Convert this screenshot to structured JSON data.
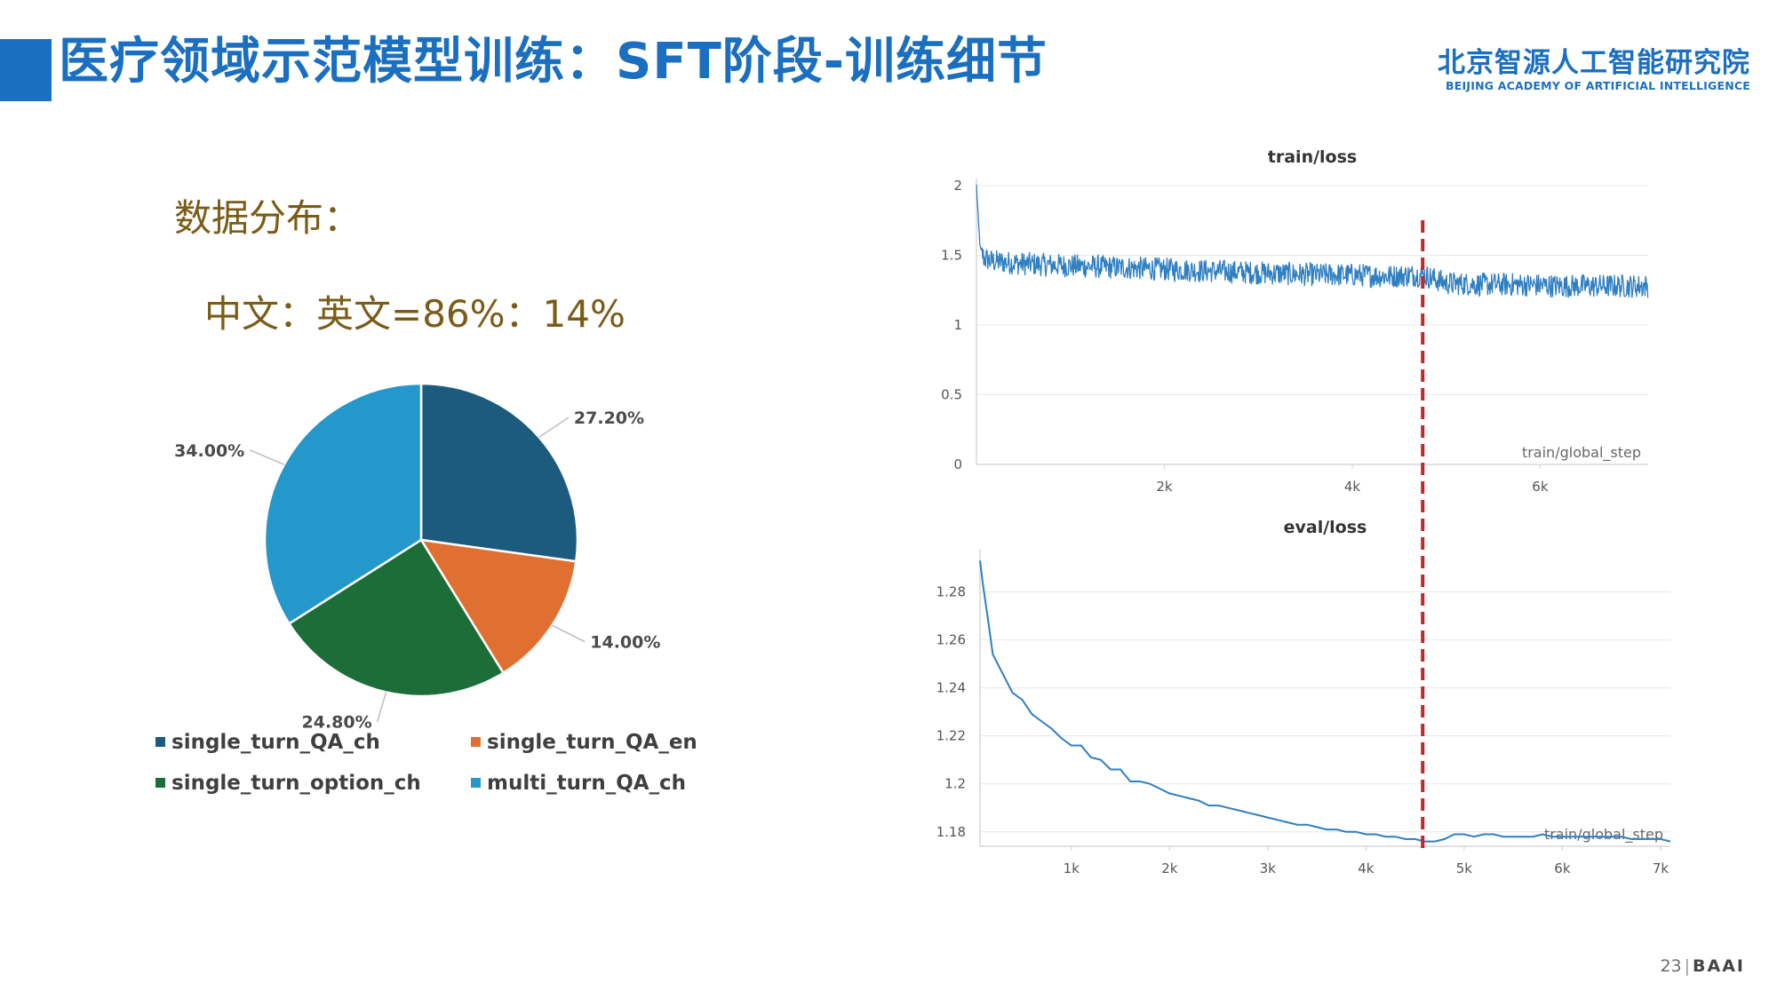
{
  "slide": {
    "title": "医疗领域示范模型训练：SFT阶段-训练细节",
    "logo_cn": "北京智源人工智能研究院",
    "logo_en": "BEIJING ACADEMY OF ARTIFICIAL INTELLIGENCE",
    "section_label": "数据分布：",
    "ratio_text": "中文：英文=86%：14%",
    "page_number": "23",
    "brand": "BAAI",
    "accent_color": "#1b6fc0",
    "text_color": "#7a5c18"
  },
  "chart_data": [
    {
      "type": "pie",
      "title": "",
      "categories": [
        "single_turn_QA_ch",
        "single_turn_QA_en",
        "single_turn_option_ch",
        "multi_turn_QA_ch"
      ],
      "values": [
        27.2,
        14.0,
        24.8,
        34.0
      ],
      "labels": [
        "27.20%",
        "14.00%",
        "24.80%",
        "34.00%"
      ],
      "colors": [
        "#1c5b7e",
        "#e07032",
        "#1d6d38",
        "#2497cb"
      ],
      "legend_position": "bottom"
    },
    {
      "type": "line",
      "title": "train/loss",
      "xlabel": "train/global_step",
      "x_ticks": [
        "2k",
        "4k",
        "6k"
      ],
      "x_tick_values": [
        2000,
        4000,
        6000
      ],
      "y_ticks": [
        "0",
        "0.5",
        "1",
        "1.5",
        "2"
      ],
      "y_tick_values": [
        0,
        0.5,
        1,
        1.5,
        2
      ],
      "xlim": [
        0,
        7150
      ],
      "ylim": [
        0,
        2
      ],
      "series": [
        {
          "x": [
            0,
            20,
            40,
            80,
            150,
            300,
            500,
            800,
            1200,
            1600,
            2000,
            2400,
            2800,
            3200,
            3600,
            4000,
            4400,
            4750,
            5000,
            5400,
            5800,
            6200,
            6600,
            7000,
            7150
          ],
          "y": [
            2.0,
            1.75,
            1.55,
            1.48,
            1.46,
            1.45,
            1.44,
            1.43,
            1.42,
            1.41,
            1.4,
            1.39,
            1.38,
            1.37,
            1.36,
            1.36,
            1.35,
            1.36,
            1.3,
            1.29,
            1.29,
            1.28,
            1.28,
            1.28,
            1.28
          ],
          "color": "#2f7fc1"
        }
      ],
      "grid": true,
      "marker_line": {
        "x": 4750,
        "color": "#c0282d",
        "style": "dashed"
      }
    },
    {
      "type": "line",
      "title": "eval/loss",
      "xlabel": "train/global_step",
      "x_ticks": [
        "1k",
        "2k",
        "3k",
        "4k",
        "5k",
        "6k",
        "7k"
      ],
      "x_tick_values": [
        1000,
        2000,
        3000,
        4000,
        5000,
        6000,
        7000
      ],
      "y_ticks": [
        "1.18",
        "1.2",
        "1.22",
        "1.24",
        "1.26",
        "1.28"
      ],
      "y_tick_values": [
        1.18,
        1.2,
        1.22,
        1.24,
        1.26,
        1.28
      ],
      "xlim": [
        70,
        7100
      ],
      "ylim": [
        1.174,
        1.295
      ],
      "series": [
        {
          "x": [
            70,
            100,
            150,
            200,
            300,
            400,
            500,
            600,
            700,
            800,
            900,
            1000,
            1100,
            1200,
            1300,
            1400,
            1500,
            1600,
            1700,
            1800,
            1900,
            2000,
            2100,
            2200,
            2300,
            2400,
            2500,
            2600,
            2700,
            2800,
            2900,
            3000,
            3100,
            3200,
            3300,
            3400,
            3500,
            3600,
            3700,
            3800,
            3900,
            4000,
            4100,
            4200,
            4300,
            4400,
            4500,
            4600,
            4650,
            4700,
            4800,
            4900,
            5000,
            5100,
            5200,
            5300,
            5400,
            5500,
            5600,
            5700,
            5800,
            5900,
            6000,
            6100,
            6200,
            6300,
            6400,
            6500,
            6600,
            6700,
            6800,
            6900,
            7000,
            7100
          ],
          "y": [
            1.293,
            1.283,
            1.269,
            1.254,
            1.246,
            1.238,
            1.235,
            1.229,
            1.226,
            1.223,
            1.219,
            1.216,
            1.216,
            1.211,
            1.21,
            1.206,
            1.206,
            1.201,
            1.201,
            1.2,
            1.198,
            1.196,
            1.195,
            1.194,
            1.193,
            1.191,
            1.191,
            1.19,
            1.189,
            1.188,
            1.187,
            1.186,
            1.185,
            1.184,
            1.183,
            1.183,
            1.182,
            1.181,
            1.181,
            1.18,
            1.18,
            1.179,
            1.179,
            1.178,
            1.178,
            1.177,
            1.177,
            1.176,
            1.176,
            1.176,
            1.177,
            1.179,
            1.179,
            1.178,
            1.179,
            1.179,
            1.178,
            1.178,
            1.178,
            1.178,
            1.179,
            1.178,
            1.178,
            1.178,
            1.178,
            1.178,
            1.178,
            1.178,
            1.178,
            1.177,
            1.177,
            1.177,
            1.177,
            1.176
          ],
          "color": "#2f7fc1"
        }
      ],
      "grid": true,
      "marker_line": {
        "x": 4650,
        "color": "#c0282d",
        "style": "dashed"
      }
    }
  ]
}
